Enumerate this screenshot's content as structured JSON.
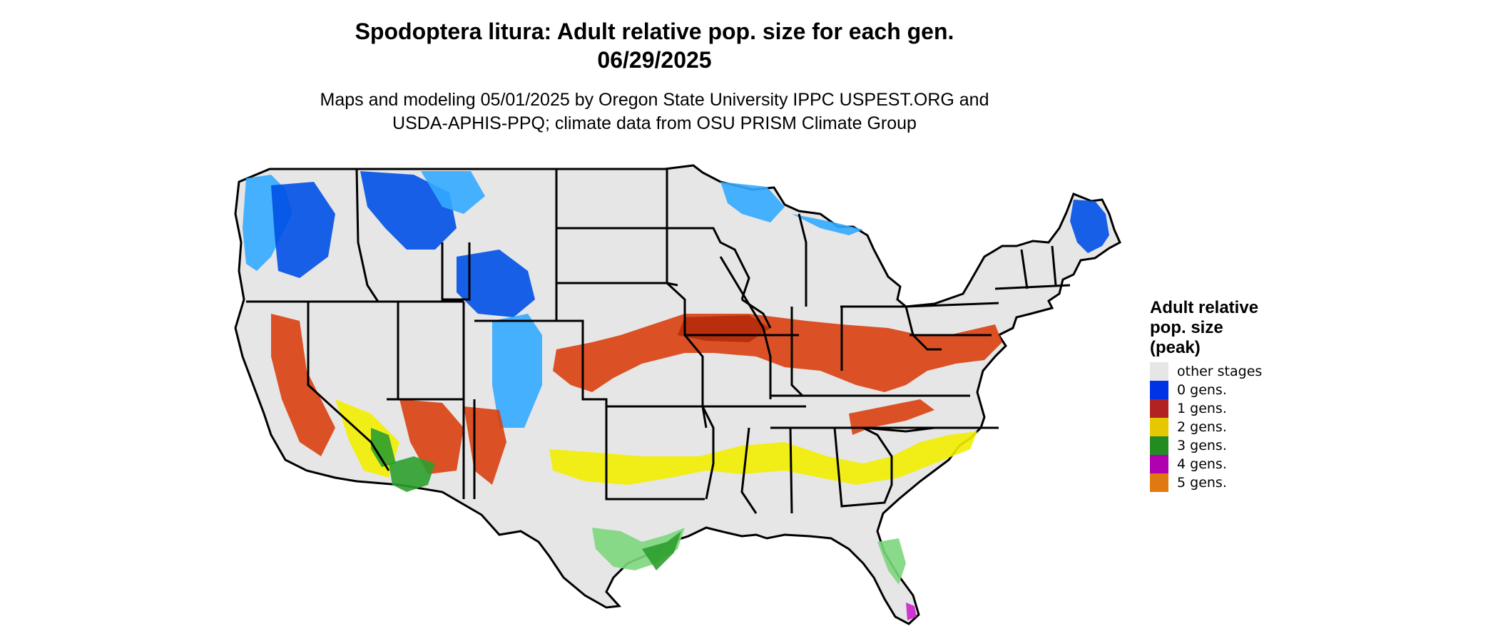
{
  "title": {
    "line1": "Spodoptera litura: Adult relative pop. size for each gen.",
    "line2": "06/29/2025"
  },
  "subtitle": {
    "line1": "Maps and modeling 05/01/2025 by Oregon State University IPPC USPEST.ORG and",
    "line2": "USDA-APHIS-PPQ; climate data from OSU PRISM Climate Group"
  },
  "legend": {
    "title_lines": [
      "Adult relative",
      "pop. size",
      "(peak)"
    ],
    "items": [
      {
        "label": "other stages",
        "color": "#e6e6e6"
      },
      {
        "label": "0 gens.",
        "color": "#0033e6"
      },
      {
        "label": "1 gens.",
        "color": "#b22222"
      },
      {
        "label": "2 gens.",
        "color": "#e6c800"
      },
      {
        "label": "3 gens.",
        "color": "#228b22"
      },
      {
        "label": "4 gens.",
        "color": "#b000b0"
      },
      {
        "label": "5 gens.",
        "color": "#e07a10"
      }
    ]
  },
  "map_colors": {
    "land": "#e6e6e6",
    "zero_gens_dark": "#0050e6",
    "zero_gens_light": "#33aaff",
    "one_gens": "#d94010",
    "one_gens_dark": "#b52a0a",
    "two_gens": "#f2ee00",
    "three_gens": "#2e9e2e",
    "three_gens_light": "#7cd67c",
    "four_gens": "#cc22cc",
    "border": "#000000"
  }
}
